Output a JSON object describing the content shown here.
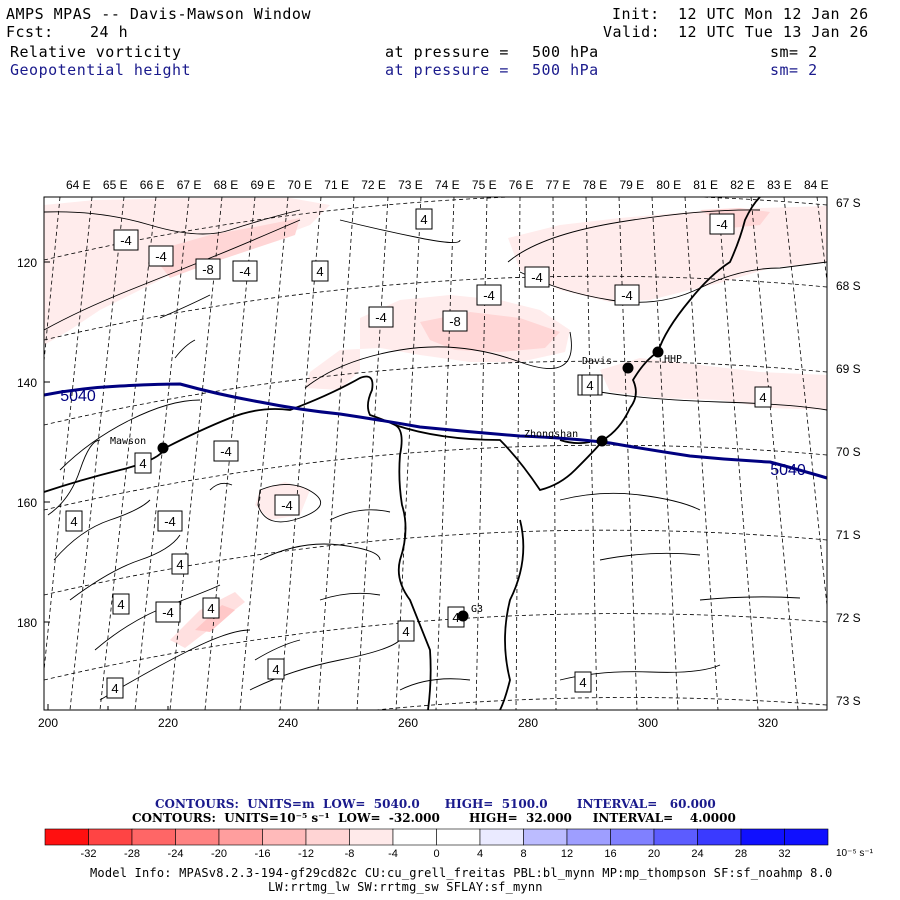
{
  "header": {
    "title": "AMPS MPAS -- Davis-Mawson Window",
    "fcst_label": "Fcst:",
    "fcst_value": "24 h",
    "init_label": "Init:",
    "init_value": "12 UTC Mon 12 Jan 26",
    "valid_label": "Valid:",
    "valid_value": "12 UTC Tue 13 Jan 26",
    "field1": {
      "name": "Relative vorticity",
      "pressure_label": "at pressure =",
      "pressure_value": "500 hPa",
      "sm": "sm= 2"
    },
    "field2": {
      "name": "Geopotential height",
      "pressure_label": "at pressure =",
      "pressure_value": "500 hPa",
      "sm": "sm= 2"
    }
  },
  "map": {
    "lon_labels": [
      "64 E",
      "65 E",
      "66 E",
      "67 E",
      "68 E",
      "69 E",
      "70 E",
      "71 E",
      "72 E",
      "73 E",
      "74 E",
      "75 E",
      "76 E",
      "77 E",
      "78 E",
      "79 E",
      "80 E",
      "81 E",
      "82 E",
      "83 E",
      "84 E"
    ],
    "lat_labels": [
      "67 S",
      "68 S",
      "69 S",
      "70 S",
      "71 S",
      "72 S",
      "73 S"
    ],
    "x_ticks": [
      "200",
      "220",
      "240",
      "260",
      "280",
      "300",
      "320"
    ],
    "y_ticks": [
      "120",
      "140",
      "160",
      "180"
    ],
    "stations": [
      {
        "name": "Mawson"
      },
      {
        "name": "Davis"
      },
      {
        "name": "HHP"
      },
      {
        "name": "Zhongshan"
      },
      {
        "name": "G3"
      }
    ],
    "height_labels": [
      "5040",
      "5040"
    ],
    "vort_labels": [
      "-4",
      "-4",
      "-8",
      "-4",
      "4",
      "-4",
      "-8",
      "-4",
      "-4",
      "-4",
      "-4",
      "4",
      "-4",
      "-4",
      "-4",
      "4",
      "4",
      "4",
      "-4",
      "4",
      "4",
      "4",
      "-4",
      "4",
      "4",
      "4",
      "4",
      "4",
      "4",
      "4"
    ]
  },
  "footer": {
    "contour1": "CONTOURS:  UNITS=m  LOW=  5040.0      HIGH=  5100.0       INTERVAL=   60.000",
    "contour2": "CONTOURS:  UNITS=10⁻⁵ s⁻¹  LOW=  -32.000       HIGH=  32.000     INTERVAL=    4.0000",
    "colorbar_ticks": [
      "-32",
      "-28",
      "-24",
      "-20",
      "-16",
      "-12",
      "-8",
      "-4",
      "0",
      "4",
      "8",
      "12",
      "16",
      "20",
      "24",
      "28",
      "32"
    ],
    "colorbar_unit": "10⁻⁵ s⁻¹",
    "colorbar_colors": [
      "#ff1010",
      "#ff4444",
      "#ff6666",
      "#ff8282",
      "#ff9e9e",
      "#ffbaba",
      "#ffd4d4",
      "#ffeaea",
      "#ffffff",
      "#ffffff",
      "#eaeaff",
      "#bcbcff",
      "#9e9eff",
      "#8080ff",
      "#5c5cff",
      "#3a3aff",
      "#1010ff"
    ],
    "model_info1": "Model Info: MPASv8.2.3-194-gf29cd82c CU:cu_grell_freitas PBL:bl_mynn MP:mp_thompson SF:sf_noahmp 8.0",
    "model_info2": "LW:rrtmg_lw SW:rrtmg_sw SFLAY:sf_mynn"
  }
}
